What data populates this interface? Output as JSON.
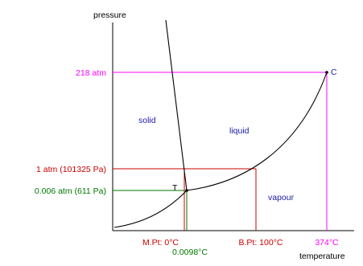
{
  "axes": {
    "y_label": "pressure",
    "x_label": "temperature"
  },
  "regions": {
    "solid": "solid",
    "liquid": "liquid",
    "vapour": "vapour"
  },
  "points": {
    "triple": "T",
    "critical": "C"
  },
  "pressure_labels": {
    "critical": "218 atm",
    "one_atm": "1 atm (101325 Pa)",
    "triple": "0.006 atm (611 Pa)"
  },
  "temperature_labels": {
    "melting": "M.Pt: 0°C",
    "triple": "0.0098°C",
    "boiling": "B.Pt: 100°C",
    "critical": "374°C"
  },
  "colors": {
    "curve": "#000000",
    "critical_guides": "#ff00ff",
    "one_atm_guides": "#cc0000",
    "triple_guides": "#007700",
    "region_text": "#1a1aaa"
  }
}
